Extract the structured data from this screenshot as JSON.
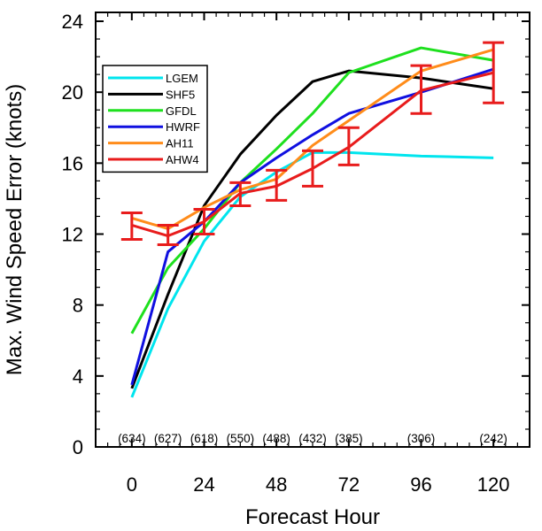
{
  "chart_data": {
    "type": "line",
    "title": "",
    "xlabel": "Forecast Hour",
    "ylabel": "Max. Wind Speed Error (knots)",
    "xlim": [
      -12,
      132
    ],
    "ylim": [
      0,
      24.5
    ],
    "xticks": [
      0,
      24,
      48,
      72,
      96,
      120
    ],
    "xtick_labels": [
      "0",
      "24",
      "48",
      "72",
      "96",
      "120"
    ],
    "yticks": [
      0,
      4,
      8,
      12,
      16,
      20,
      24
    ],
    "ytick_labels": [
      "0",
      "4",
      "8",
      "12",
      "16",
      "20",
      "24"
    ],
    "grid": false,
    "legend_position": "top-left",
    "x": [
      0,
      12,
      24,
      36,
      48,
      60,
      72,
      96,
      120
    ],
    "series": [
      {
        "name": "LGEM",
        "color": "#00e5ee",
        "values": [
          2.8,
          7.8,
          11.6,
          14.1,
          15.5,
          16.6,
          16.6,
          16.4,
          16.3
        ]
      },
      {
        "name": "SHF5",
        "color": "#000000",
        "values": [
          3.3,
          8.6,
          13.6,
          16.5,
          18.7,
          20.6,
          21.2,
          20.8,
          20.2
        ]
      },
      {
        "name": "GFDL",
        "color": "#1ee01e",
        "values": [
          6.4,
          10.1,
          12.3,
          14.9,
          16.8,
          18.8,
          21.1,
          22.5,
          21.8
        ]
      },
      {
        "name": "HWRF",
        "color": "#1010e0",
        "values": [
          3.5,
          11.0,
          12.7,
          14.9,
          16.3,
          17.6,
          18.8,
          20.0,
          21.3
        ]
      },
      {
        "name": "AH11",
        "color": "#ff8c1a",
        "values": [
          12.9,
          12.3,
          13.5,
          14.5,
          15.1,
          17.0,
          18.4,
          21.2,
          22.4
        ]
      },
      {
        "name": "AHW4",
        "color": "#e81c1c",
        "values": [
          12.5,
          11.9,
          12.7,
          14.3,
          14.7,
          15.7,
          16.9,
          20.1,
          21.1
        ]
      }
    ],
    "error_bars": {
      "series": "AHW4",
      "color": "#e81c1c",
      "x": [
        0,
        12,
        24,
        36,
        48,
        60,
        72,
        96,
        120
      ],
      "low": [
        11.7,
        11.4,
        12.0,
        13.6,
        13.9,
        14.7,
        15.9,
        18.8,
        19.4
      ],
      "high": [
        13.2,
        12.5,
        13.4,
        14.9,
        15.6,
        16.7,
        18.0,
        21.5,
        22.8
      ]
    },
    "sample_counts": {
      "x": [
        0,
        12,
        24,
        36,
        48,
        60,
        72,
        96,
        120
      ],
      "labels": [
        "(634)",
        "(627)",
        "(618)",
        "(550)",
        "(488)",
        "(432)",
        "(385)",
        "(306)",
        "(242)"
      ]
    }
  }
}
